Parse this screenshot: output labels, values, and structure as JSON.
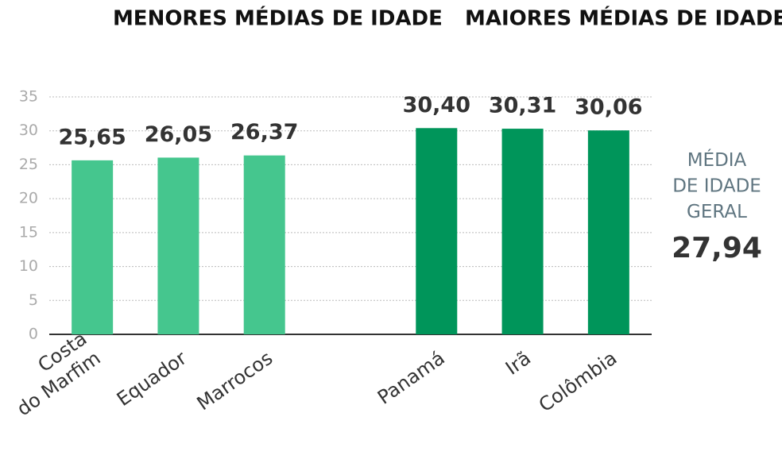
{
  "chart_data": {
    "type": "bar",
    "series": [
      {
        "name": "MENORES MÉDIAS DE IDADE",
        "color": "#45c68e",
        "categories": [
          "Costa\ndo Marfim",
          "Equador",
          "Marrocos"
        ],
        "values": [
          25.65,
          26.05,
          26.37
        ],
        "value_labels": [
          "25,65",
          "26,05",
          "26,37"
        ]
      },
      {
        "name": "MAIORES MÉDIAS DE IDADE",
        "color": "#00955a",
        "categories": [
          "Panamá",
          "Irã",
          "Colômbia"
        ],
        "values": [
          30.4,
          30.31,
          30.06
        ],
        "value_labels": [
          "30,40",
          "30,31",
          "30,06"
        ]
      }
    ],
    "ylim": [
      0,
      35
    ],
    "yticks": [
      0,
      5,
      10,
      15,
      20,
      25,
      30,
      35
    ],
    "grid": true,
    "average": {
      "label": "MÉDIA\nDE IDADE\nGERAL",
      "value": 27.94,
      "value_label": "27,94"
    }
  }
}
